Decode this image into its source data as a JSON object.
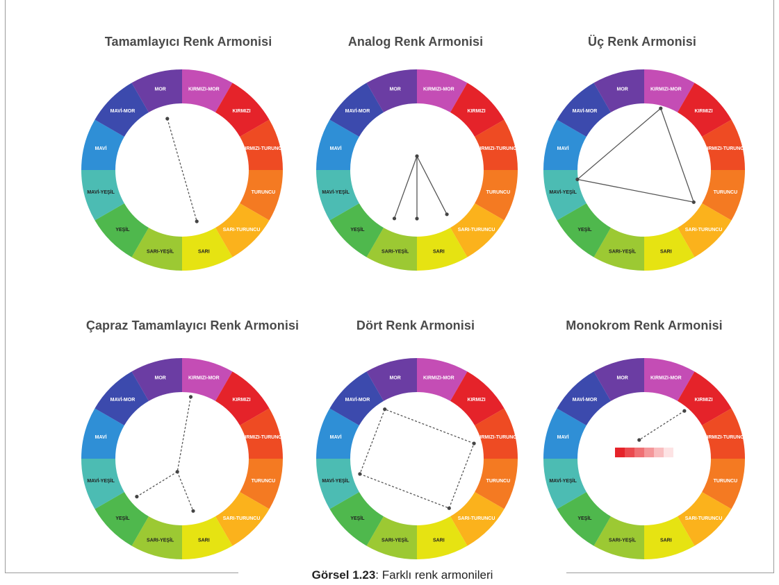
{
  "caption": {
    "label": "Görsel 1.23",
    "text": ": Farklı renk armonileri"
  },
  "segments": [
    {
      "label": "KIRMIZI-MOR",
      "color": "#c44db5",
      "text": "#ffffff"
    },
    {
      "label": "KIRMIZI",
      "color": "#e5232a",
      "text": "#ffffff"
    },
    {
      "label": "KIRMIZI-TURUNCU",
      "color": "#ee4b23",
      "text": "#ffffff"
    },
    {
      "label": "TURUNCU",
      "color": "#f47a22",
      "text": "#ffffff"
    },
    {
      "label": "SARI-TURUNCU",
      "color": "#fbb21c",
      "text": "#ffffff"
    },
    {
      "label": "SARI",
      "color": "#e6e312",
      "text": "#222222"
    },
    {
      "label": "SARI-YEŞİL",
      "color": "#9cc933",
      "text": "#222222"
    },
    {
      "label": "YEŞİL",
      "color": "#4fb84d",
      "text": "#222222"
    },
    {
      "label": "MAVİ-YEŞİL",
      "color": "#4cbcb3",
      "text": "#222222"
    },
    {
      "label": "MAVİ",
      "color": "#2f8fd6",
      "text": "#ffffff"
    },
    {
      "label": "MAVİ-MOR",
      "color": "#3c4aad",
      "text": "#ffffff"
    },
    {
      "label": "MOR",
      "color": "#6b3da3",
      "text": "#ffffff"
    }
  ],
  "panels": [
    {
      "title": "Tamamlayıcı Renk Armonisi",
      "connector": "complementary"
    },
    {
      "title": "Analog Renk Armonisi",
      "connector": "analog"
    },
    {
      "title": "Üç Renk Armonisi",
      "connector": "triad"
    },
    {
      "title": "Çapraz Tamamlayıcı Renk Armonisi",
      "connector": "split"
    },
    {
      "title": "Dört Renk Armonisi",
      "connector": "tetrad"
    },
    {
      "title": "Monokrom Renk Armonisi",
      "connector": "mono"
    }
  ],
  "monochrome_swatches": [
    "#e5232a",
    "#ea4a4f",
    "#ef7074",
    "#f4979a",
    "#f9bec0",
    "#fde3e4"
  ]
}
